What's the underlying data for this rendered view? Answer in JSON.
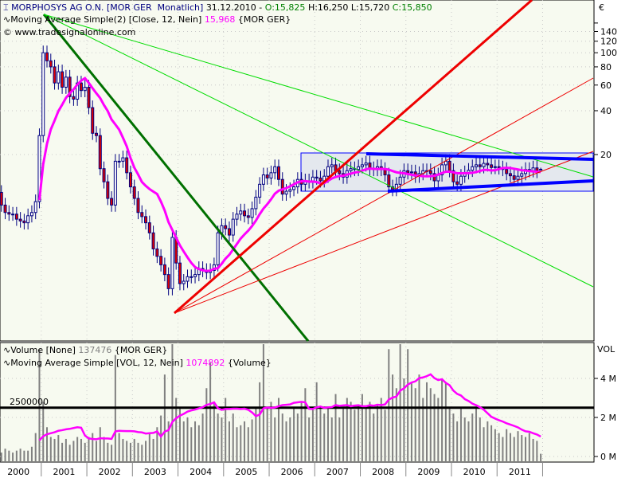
{
  "header": {
    "symbol": "MORPHOSYS AG O.N.",
    "instrument": "[MOR GER  Monatlich]",
    "date": "31.12.2010 -",
    "open": "O:15,825",
    "high": "H:16,250",
    "low": "L:15,720",
    "close": "C:15,850"
  },
  "ma_legend": {
    "label": "Moving Average Simple(2) [Close, 12, Nein]",
    "value": "15,968",
    "source": "{MOR GER}"
  },
  "copyright": "© www.tradesignalonline.com",
  "vol_legend": {
    "label": "Volume [None]",
    "value": "137476",
    "source": "{MOR GER}"
  },
  "vol_ma_legend": {
    "label": "Moving Average Simple [VOL, 12, Nein]",
    "value": "1074892",
    "source": "{Volume}"
  },
  "price_axis": {
    "unit": "€",
    "ticks": [
      "140",
      "120",
      "100",
      "80",
      "60",
      "40",
      "20"
    ]
  },
  "vol_axis": {
    "unit": "VOL",
    "ticks": [
      "4 M",
      "2 M",
      "0 M"
    ]
  },
  "hline_label": "2500000",
  "colors": {
    "up": "#ffffff",
    "down": "#e00000",
    "wick": "#000080",
    "ma": "#ff00ff",
    "bg": "#f7faf0"
  },
  "chart_data": [
    {
      "type": "candlestick",
      "scale": "log",
      "frequency": "monthly",
      "x_start": "1999-01",
      "x_tick_labels": [
        "2000",
        "2001",
        "2002",
        "2003",
        "2004",
        "2005",
        "2006",
        "2007",
        "2008",
        "2009",
        "2010",
        "2011"
      ],
      "ylim": [
        1.5,
        170
      ],
      "close": [
        11,
        9,
        8,
        7.8,
        7.8,
        7.2,
        7,
        6.8,
        7.6,
        8,
        9.5,
        27,
        100,
        88,
        80,
        62,
        74,
        58,
        68,
        50,
        48,
        62,
        55,
        58,
        42,
        28,
        27,
        16,
        13,
        10,
        9,
        18,
        18,
        19,
        15,
        12,
        10,
        8,
        7.5,
        6.8,
        5.8,
        4.5,
        4,
        3.5,
        3,
        2.4,
        5.4,
        3.6,
        2.6,
        2.7,
        2.9,
        2.9,
        3,
        3.3,
        3.2,
        3.1,
        3.2,
        3.5,
        5.8,
        6.5,
        6.2,
        5.6,
        7.2,
        7.8,
        8.2,
        7.6,
        7.4,
        8.5,
        10.2,
        12.5,
        14.5,
        13.8,
        15,
        16.5,
        13.5,
        10.7,
        11.2,
        11.5,
        12,
        13.5,
        12.5,
        13.2,
        13,
        14,
        13.8,
        13.2,
        14.2,
        16.5,
        17,
        15.5,
        14.8,
        14,
        15.5,
        16,
        15.8,
        16.5,
        17,
        17.5,
        16,
        15.8,
        16.5,
        15.8,
        14.5,
        12,
        11.5,
        12.5,
        14,
        15.5,
        15,
        15.2,
        14.2,
        14.8,
        15.5,
        15.5,
        14.8,
        13.2,
        14.5,
        17,
        18,
        15.5,
        13,
        12.5,
        14.2,
        15,
        15.6,
        16.5,
        17,
        16.5,
        17.4,
        17,
        16.3,
        16.5,
        16.2,
        15.8,
        14.8,
        14.3,
        13.5,
        14.2,
        14.8,
        15.8,
        15.5,
        16.2,
        15.3,
        15.85
      ],
      "last_bar": {
        "open": 15.825,
        "high": 16.25,
        "low": 15.72,
        "close": 15.85
      },
      "moving_average_period": 12
    },
    {
      "type": "bar",
      "title": "Volume",
      "unit": "M",
      "ylim": [
        0,
        6
      ],
      "values": [
        0.3,
        0.2,
        0.4,
        0.3,
        0.2,
        0.3,
        0.4,
        0.3,
        0.3,
        0.5,
        1.2,
        5.5,
        2.8,
        1.5,
        1,
        0.9,
        1.1,
        0.7,
        0.9,
        0.6,
        0.8,
        1,
        0.9,
        0.7,
        1,
        1.2,
        0.8,
        1.5,
        1,
        0.7,
        0.6,
        5.2,
        1.2,
        0.9,
        0.8,
        0.7,
        0.9,
        0.7,
        0.6,
        0.8,
        1.2,
        0.9,
        1.5,
        2.1,
        4.2,
        1.8,
        5.8,
        3,
        2.5,
        1.8,
        2,
        1.5,
        1.8,
        1.6,
        2.2,
        3.5,
        4.8,
        2.8,
        2.2,
        2,
        3,
        1.8,
        2.2,
        1.5,
        1.6,
        1.8,
        1.5,
        1.9,
        2.5,
        3.8,
        6,
        2.5,
        2.8,
        2,
        3,
        2.2,
        1.8,
        2,
        2.5,
        2.2,
        2.8,
        3.5,
        2,
        2.4,
        3.8,
        2.5,
        2.2,
        2.5,
        2,
        3.2,
        2,
        2.5,
        3,
        2.8,
        2.4,
        2.6,
        3.2,
        2.5,
        2.8,
        2.2,
        2.6,
        3,
        2.4,
        5.5,
        4.2,
        3.5,
        6,
        4,
        5.5,
        3.8,
        3.5,
        4.2,
        3,
        3.8,
        3.5,
        3.2,
        3,
        4,
        3.8,
        2.5,
        2.2,
        1.8,
        2.5,
        2,
        1.8,
        2.2,
        2.5,
        2,
        1.5,
        1.8,
        1.6,
        1.4,
        1.2,
        1,
        1.4,
        1.2,
        1,
        1.3,
        1.1,
        1,
        1.2,
        0.9,
        0.8,
        0.14
      ],
      "hline": 2.5,
      "moving_average_period": 12
    }
  ]
}
